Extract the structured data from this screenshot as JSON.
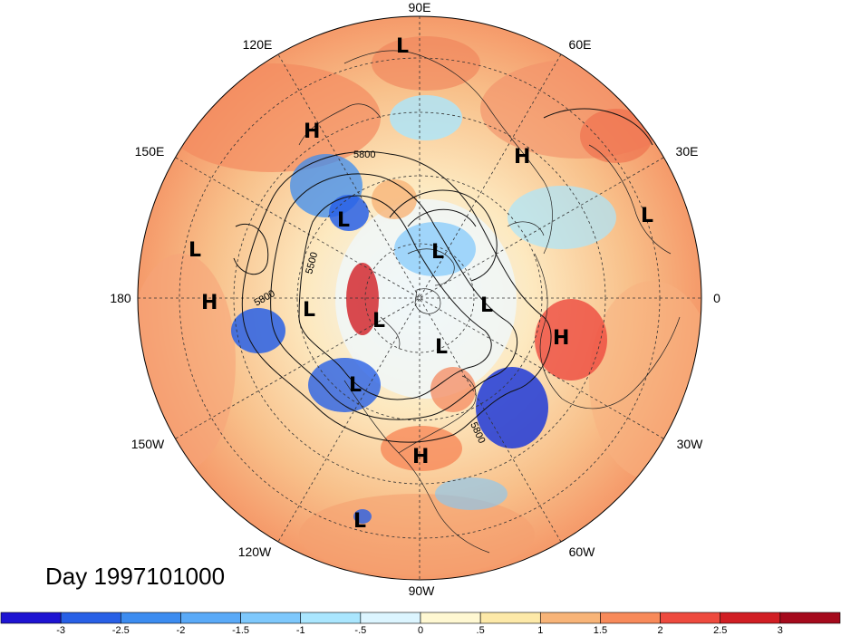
{
  "title": "Day 1997101000",
  "longitude_labels": [
    "90E",
    "60E",
    "30E",
    "0",
    "30W",
    "60W",
    "90W",
    "120W",
    "150W",
    "180",
    "150E",
    "120E"
  ],
  "contour_labels": [
    "5800",
    "5500",
    "5800",
    "5800"
  ],
  "pressure_centers": [
    {
      "type": "L",
      "lon_label": "90E"
    },
    {
      "type": "H",
      "lon_label": "120E"
    },
    {
      "type": "H",
      "lon_label": "60E"
    },
    {
      "type": "L",
      "lon_label": "30E"
    },
    {
      "type": "L",
      "lon_label": "150E"
    },
    {
      "type": "H",
      "lon_label": "180"
    },
    {
      "type": "L",
      "lon_label": "120E"
    },
    {
      "type": "L",
      "lon_label": "90E"
    },
    {
      "type": "L",
      "lon_label": "150E"
    },
    {
      "type": "L",
      "lon_label": "120W"
    },
    {
      "type": "L",
      "lon_label": "30E"
    },
    {
      "type": "L",
      "lon_label": "60W"
    },
    {
      "type": "H",
      "lon_label": "0"
    },
    {
      "type": "L",
      "lon_label": "120W"
    },
    {
      "type": "H",
      "lon_label": "90W"
    },
    {
      "type": "L",
      "lon_label": "120W"
    }
  ],
  "colorbar": {
    "ticks": [
      "-3",
      "-2.5",
      "-2",
      "-1.5",
      "-1",
      "-.5",
      "0",
      ".5",
      "1",
      "1.5",
      "2",
      "2.5",
      "3"
    ],
    "colors": [
      "#1e14d2",
      "#2860e6",
      "#3c8cf0",
      "#5aaaf8",
      "#7ec8fc",
      "#aae6fe",
      "#dcf5ff",
      "#fff8d2",
      "#fde9a8",
      "#f8b478",
      "#f88a5a",
      "#ee4a3e",
      "#d11e24",
      "#a50a1c"
    ]
  },
  "colors": {
    "positive": "#f4a06c",
    "negative": "#3a7fe0"
  }
}
